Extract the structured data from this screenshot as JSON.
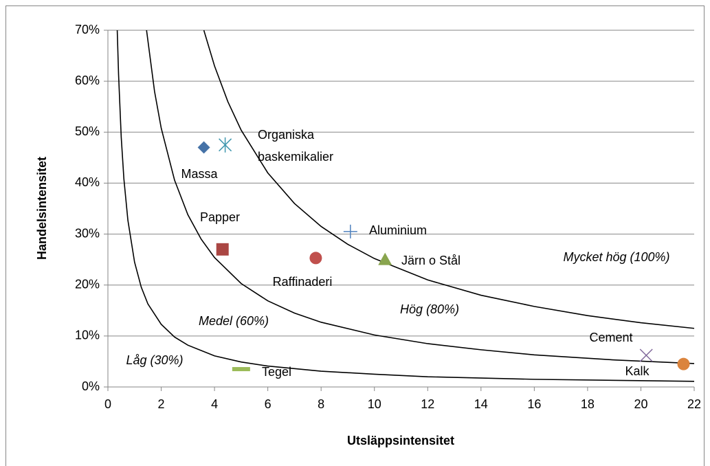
{
  "chart_data": {
    "type": "scatter",
    "xlabel": "Utsläppsintensitet",
    "ylabel": "Handelsintensitet",
    "xlim": [
      0,
      22
    ],
    "xticks": [
      0,
      2,
      4,
      6,
      8,
      10,
      12,
      14,
      16,
      18,
      20,
      22
    ],
    "ylim": [
      0,
      70
    ],
    "yticks": [
      {
        "value": 0,
        "label": "0%"
      },
      {
        "value": 10,
        "label": "10%"
      },
      {
        "value": 20,
        "label": "20%"
      },
      {
        "value": 30,
        "label": "30%"
      },
      {
        "value": 40,
        "label": "40%"
      },
      {
        "value": 50,
        "label": "50%"
      },
      {
        "value": 60,
        "label": "60%"
      },
      {
        "value": 70,
        "label": "70%"
      }
    ],
    "grid": true,
    "series": [
      {
        "name": "Massa",
        "color": "#4572a7",
        "marker": "diamond",
        "x": [
          3.6
        ],
        "values": [
          47
        ]
      },
      {
        "name": "Organiska baskemikalier",
        "color": "#4198af",
        "marker": "asterisk",
        "x": [
          4.4
        ],
        "values": [
          47.5
        ]
      },
      {
        "name": "Papper",
        "color": "#aa4643",
        "marker": "square",
        "x": [
          4.3
        ],
        "values": [
          27
        ]
      },
      {
        "name": "Aluminium",
        "color": "#4f81bd",
        "marker": "plus",
        "x": [
          9.1
        ],
        "values": [
          30.5
        ]
      },
      {
        "name": "Raffinaderi",
        "color": "#c0504d",
        "marker": "circle",
        "x": [
          7.8
        ],
        "values": [
          25.3
        ]
      },
      {
        "name": "Järn o Stål",
        "color": "#89a54e",
        "marker": "triangle",
        "x": [
          10.4
        ],
        "values": [
          25
        ]
      },
      {
        "name": "Cement",
        "color": "#80699b",
        "marker": "x",
        "x": [
          20.2
        ],
        "values": [
          6.2
        ]
      },
      {
        "name": "Kalk",
        "color": "#db843d",
        "marker": "circle",
        "x": [
          21.6
        ],
        "values": [
          4.5
        ]
      },
      {
        "name": "Tegel",
        "color": "#9bbb59",
        "marker": "dash",
        "x": [
          5.0
        ],
        "values": [
          3.5
        ]
      }
    ],
    "lines": [
      {
        "color": "#000000",
        "x": [
          0.35,
          0.4,
          0.5,
          0.6,
          0.75,
          1,
          1.25,
          1.5,
          2,
          2.5,
          3,
          4,
          5,
          6,
          8,
          10,
          12,
          16,
          22
        ],
        "values": [
          70,
          61.3,
          49,
          40.8,
          32.7,
          24.5,
          19.6,
          16.3,
          12.3,
          9.8,
          8.2,
          6.1,
          4.9,
          4.1,
          3.1,
          2.5,
          2.0,
          1.5,
          1.1
        ]
      },
      {
        "color": "#000000",
        "x": [
          1.45,
          1.75,
          2,
          2.5,
          3,
          3.5,
          4,
          5,
          6,
          7,
          8,
          10,
          12,
          14,
          16,
          19,
          22
        ],
        "values": [
          70,
          58,
          50.8,
          40.6,
          33.8,
          29,
          25.4,
          20.3,
          16.9,
          14.5,
          12.7,
          10.2,
          8.5,
          7.3,
          6.3,
          5.3,
          4.6
        ]
      },
      {
        "color": "#000000",
        "x": [
          3.6,
          4,
          4.5,
          5,
          6,
          7,
          8,
          9,
          10,
          12,
          14,
          16,
          18,
          20,
          22
        ],
        "values": [
          70,
          63,
          56,
          50.4,
          42,
          36,
          31.5,
          28,
          25.2,
          21,
          18,
          15.8,
          14,
          12.6,
          11.5
        ]
      }
    ],
    "annotations": [
      "Låg (30%)",
      "Medel (60%)",
      "Hög (80%)",
      "Mycket hög (100%)"
    ]
  }
}
